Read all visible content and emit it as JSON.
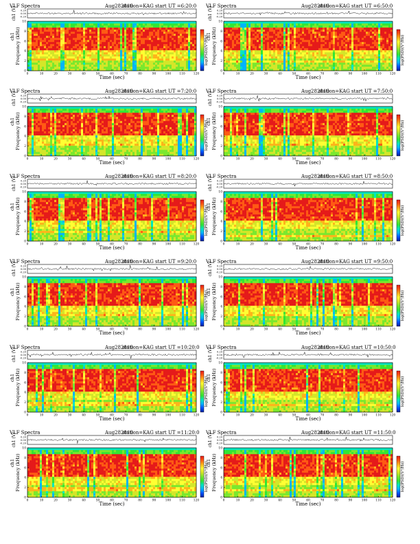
{
  "figure": {
    "colors": {
      "scale": [
        "#00209a",
        "#0050ff",
        "#00b4ff",
        "#00e6c0",
        "#33e633",
        "#7ae82e",
        "#d4e629",
        "#ffff33",
        "#ffb31a",
        "#ff5a14",
        "#e51a1a"
      ]
    }
  },
  "chart_data": [
    {
      "type": "heatmap",
      "title": "VLF Spectra",
      "date": "Aug282010",
      "station": "station=KAG",
      "start": "start UT =6:20:0",
      "xlabel": "Time (sec)",
      "ylabel": "Frequency (kHz)",
      "ylabel_top": "ch1",
      "trace_label": "ch1 (V)",
      "colorbar_label": "log(PSD)(V²/Hz)",
      "xlim": [
        0,
        120
      ],
      "ylim": [
        0,
        10
      ],
      "xticks": [
        0,
        10,
        20,
        30,
        40,
        50,
        60,
        70,
        80,
        90,
        100,
        110,
        120
      ],
      "yticks": [
        0,
        2,
        4,
        6,
        8,
        10
      ],
      "trace_yticks": [
        "0.20",
        "0.00",
        "-0.20"
      ]
    },
    {
      "type": "heatmap",
      "title": "VLF Spectra",
      "date": "Aug282010",
      "station": "station=KAG",
      "start": "start UT =6:50:0",
      "xlabel": "Time (sec)",
      "ylabel": "Frequency (kHz)",
      "ylabel_top": "ch1",
      "trace_label": "ch1 (V)",
      "colorbar_label": "log(PSD)(V²/Hz)",
      "xlim": [
        0,
        120
      ],
      "ylim": [
        0,
        10
      ],
      "xticks": [
        0,
        10,
        20,
        30,
        40,
        50,
        60,
        70,
        80,
        90,
        100,
        110,
        120
      ],
      "yticks": [
        0,
        2,
        4,
        6,
        8,
        10
      ],
      "trace_yticks": [
        "0.20",
        "0.00",
        "-0.20"
      ]
    },
    {
      "type": "heatmap",
      "title": "VLF Spectra",
      "date": "Aug282010",
      "station": "station=KAG",
      "start": "start UT =7:20:0",
      "xlabel": "Time (sec)",
      "ylabel": "Frequency (kHz)",
      "ylabel_top": "ch1",
      "trace_label": "ch1 (V)",
      "colorbar_label": "log(PSD)(V²/Hz)",
      "xlim": [
        0,
        120
      ],
      "ylim": [
        0,
        10
      ],
      "xticks": [
        0,
        10,
        20,
        30,
        40,
        50,
        60,
        70,
        80,
        90,
        100,
        110,
        120
      ],
      "yticks": [
        0,
        2,
        4,
        6,
        8,
        10
      ],
      "trace_yticks": [
        "0.20",
        "0.00",
        "-0.20"
      ]
    },
    {
      "type": "heatmap",
      "title": "VLF Spectra",
      "date": "Aug282010",
      "station": "station=KAG",
      "start": "start UT =7:50:0",
      "xlabel": "Time (sec)",
      "ylabel": "Frequency (kHz)",
      "ylabel_top": "ch1",
      "trace_label": "ch1 (V)",
      "colorbar_label": "log(PSD)(V²/Hz)",
      "xlim": [
        0,
        120
      ],
      "ylim": [
        0,
        10
      ],
      "xticks": [
        0,
        10,
        20,
        30,
        40,
        50,
        60,
        70,
        80,
        90,
        100,
        110,
        120
      ],
      "yticks": [
        0,
        2,
        4,
        6,
        8,
        10
      ],
      "trace_yticks": [
        "0.20",
        "0.00",
        "-0.20"
      ]
    },
    {
      "type": "heatmap",
      "title": "VLF Spectra",
      "date": "Aug282010",
      "station": "station=KAG",
      "start": "start UT =8:20:0",
      "xlabel": "Time (sec)",
      "ylabel": "Frequency (kHz)",
      "ylabel_top": "ch1",
      "trace_label": "ch1 (V)",
      "colorbar_label": "log(PSD)(V²/Hz)",
      "xlim": [
        0,
        120
      ],
      "ylim": [
        0,
        10
      ],
      "xticks": [
        0,
        10,
        20,
        30,
        40,
        50,
        60,
        70,
        80,
        90,
        100,
        110,
        120
      ],
      "yticks": [
        0,
        2,
        4,
        6,
        8,
        10
      ],
      "trace_yticks": [
        "0.20",
        "0.00",
        "-0.20"
      ]
    },
    {
      "type": "heatmap",
      "title": "VLF Spectra",
      "date": "Aug282010",
      "station": "station=KAG",
      "start": "start UT =8:50:0",
      "xlabel": "Time (sec)",
      "ylabel": "Frequency (kHz)",
      "ylabel_top": "ch1",
      "trace_label": "ch1 (V)",
      "colorbar_label": "log(PSD)(V²/Hz)",
      "xlim": [
        0,
        120
      ],
      "ylim": [
        0,
        10
      ],
      "xticks": [
        0,
        10,
        20,
        30,
        40,
        50,
        60,
        70,
        80,
        90,
        100,
        110,
        120
      ],
      "yticks": [
        0,
        2,
        4,
        6,
        8,
        10
      ],
      "trace_yticks": [
        "0.20",
        "0.00",
        "-0.20"
      ]
    },
    {
      "type": "heatmap",
      "title": "VLF Spectra",
      "date": "Aug282010",
      "station": "station=KAG",
      "start": "start UT =9:20:0",
      "xlabel": "Time (sec)",
      "ylabel": "Frequency (kHz)",
      "ylabel_top": "ch1",
      "trace_label": "ch1 (V)",
      "colorbar_label": "log(PSD)(V²/Hz)",
      "xlim": [
        0,
        120
      ],
      "ylim": [
        0,
        10
      ],
      "xticks": [
        0,
        10,
        20,
        30,
        40,
        50,
        60,
        70,
        80,
        90,
        100,
        110,
        120
      ],
      "yticks": [
        0,
        2,
        4,
        6,
        8,
        10
      ],
      "trace_yticks": [
        "0.20",
        "0.00",
        "-0.20"
      ]
    },
    {
      "type": "heatmap",
      "title": "VLF Spectra",
      "date": "Aug282010",
      "station": "station=KAG",
      "start": "start UT =9:50:0",
      "xlabel": "Time (sec)",
      "ylabel": "Frequency (kHz)",
      "ylabel_top": "ch1",
      "trace_label": "ch1 (V)",
      "colorbar_label": "log(PSD)(V²/Hz)",
      "xlim": [
        0,
        120
      ],
      "ylim": [
        0,
        10
      ],
      "xticks": [
        0,
        10,
        20,
        30,
        40,
        50,
        60,
        70,
        80,
        90,
        100,
        110,
        120
      ],
      "yticks": [
        0,
        2,
        4,
        6,
        8,
        10
      ],
      "trace_yticks": [
        "0.20",
        "0.00",
        "-0.20"
      ]
    },
    {
      "type": "heatmap",
      "title": "VLF Spectra",
      "date": "Aug282010",
      "station": "station=KAG",
      "start": "start UT =10:20:0",
      "xlabel": "Time (sec)",
      "ylabel": "Frequency (kHz)",
      "ylabel_top": "ch1",
      "trace_label": "ch1 (V)",
      "colorbar_label": "log(PSD)(V²/Hz)",
      "xlim": [
        0,
        120
      ],
      "ylim": [
        0,
        10
      ],
      "xticks": [
        0,
        10,
        20,
        30,
        40,
        50,
        60,
        70,
        80,
        90,
        100,
        110,
        120
      ],
      "yticks": [
        0,
        2,
        4,
        6,
        8,
        10
      ],
      "trace_yticks": [
        "0.20",
        "0.00",
        "-0.20"
      ]
    },
    {
      "type": "heatmap",
      "title": "VLF Spectra",
      "date": "Aug282010",
      "station": "station=KAG",
      "start": "start UT =10:50:0",
      "xlabel": "Time (sec)",
      "ylabel": "Frequency (kHz)",
      "ylabel_top": "ch1",
      "trace_label": "ch1 (V)",
      "colorbar_label": "log(PSD)(V²/Hz)",
      "xlim": [
        0,
        120
      ],
      "ylim": [
        0,
        10
      ],
      "xticks": [
        0,
        10,
        20,
        30,
        40,
        50,
        60,
        70,
        80,
        90,
        100,
        110,
        120
      ],
      "yticks": [
        0,
        2,
        4,
        6,
        8,
        10
      ],
      "trace_yticks": [
        "0.20",
        "0.00",
        "-0.20"
      ]
    },
    {
      "type": "heatmap",
      "title": "VLF Spectra",
      "date": "Aug282010",
      "station": "station=KAG",
      "start": "start UT =11:20:0",
      "xlabel": "Time (sec)",
      "ylabel": "Frequency (kHz)",
      "ylabel_top": "ch1",
      "trace_label": "ch1 (V)",
      "colorbar_label": "log(PSD)(V²/Hz)",
      "xlim": [
        0,
        120
      ],
      "ylim": [
        0,
        10
      ],
      "xticks": [
        0,
        10,
        20,
        30,
        40,
        50,
        60,
        70,
        80,
        90,
        100,
        110,
        120
      ],
      "yticks": [
        0,
        2,
        4,
        6,
        8,
        10
      ],
      "trace_yticks": [
        "0.20",
        "0.00",
        "-0.20"
      ]
    },
    {
      "type": "heatmap",
      "title": "VLF Spectra",
      "date": "Aug282010",
      "station": "station=KAG",
      "start": "start UT =11:50:0",
      "xlabel": "Time (sec)",
      "ylabel": "Frequency (kHz)",
      "ylabel_top": "ch1",
      "trace_label": "ch1 (V)",
      "colorbar_label": "log(PSD)(V²/Hz)",
      "xlim": [
        0,
        120
      ],
      "ylim": [
        0,
        10
      ],
      "xticks": [
        0,
        10,
        20,
        30,
        40,
        50,
        60,
        70,
        80,
        90,
        100,
        110,
        120
      ],
      "yticks": [
        0,
        2,
        4,
        6,
        8,
        10
      ],
      "trace_yticks": [
        "0.20",
        "0.00",
        "-0.20"
      ]
    }
  ]
}
